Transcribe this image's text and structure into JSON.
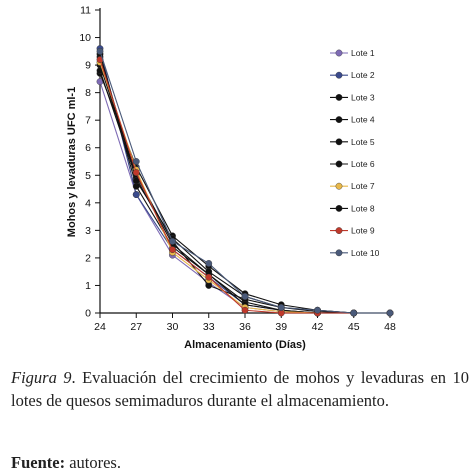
{
  "chart_data": {
    "type": "line",
    "title": "",
    "xlabel": "Almacenamiento (Días)",
    "ylabel": "Mohos y levaduras UFC ml-1",
    "x": [
      24,
      27,
      30,
      33,
      36,
      39,
      42,
      45,
      48
    ],
    "xlim": [
      24,
      48
    ],
    "ylim": [
      0,
      11
    ],
    "yticks": [
      0,
      1,
      2,
      3,
      4,
      5,
      6,
      7,
      8,
      9,
      10,
      11
    ],
    "grid": false,
    "legend_position": "right",
    "series": [
      {
        "name": "Lote 1",
        "color": "#7e6bb5",
        "values": [
          8.4,
          4.3,
          2.1,
          1.1,
          0.2,
          0.05,
          0.0,
          0.0,
          0.0
        ]
      },
      {
        "name": "Lote 2",
        "color": "#3a4a8c",
        "values": [
          9.6,
          4.3,
          2.3,
          1.3,
          0.3,
          0.1,
          0.0,
          0.0,
          0.0
        ]
      },
      {
        "name": "Lote 3",
        "color": "#111111",
        "values": [
          8.7,
          5.3,
          2.8,
          1.7,
          0.7,
          0.3,
          0.1,
          0.0,
          0.0
        ]
      },
      {
        "name": "Lote 4",
        "color": "#111111",
        "values": [
          9.3,
          4.6,
          2.4,
          1.4,
          0.4,
          0.1,
          0.0,
          0.0,
          0.0
        ]
      },
      {
        "name": "Lote 5",
        "color": "#111111",
        "values": [
          9.0,
          5.0,
          2.6,
          1.0,
          0.5,
          0.2,
          0.05,
          0.0,
          0.0
        ]
      },
      {
        "name": "Lote 6",
        "color": "#111111",
        "values": [
          8.8,
          4.9,
          2.5,
          1.4,
          0.3,
          0.1,
          0.0,
          0.0,
          0.0
        ]
      },
      {
        "name": "Lote 7",
        "color": "#e8b84a",
        "values": [
          9.1,
          5.2,
          2.2,
          1.2,
          0.2,
          0.05,
          0.0,
          0.0,
          0.0
        ]
      },
      {
        "name": "Lote 8",
        "color": "#111111",
        "values": [
          9.4,
          4.8,
          2.7,
          1.5,
          0.6,
          0.2,
          0.1,
          0.0,
          0.0
        ]
      },
      {
        "name": "Lote 9",
        "color": "#c0392b",
        "values": [
          9.2,
          5.1,
          2.3,
          1.3,
          0.1,
          0.0,
          0.0,
          0.0,
          0.0
        ]
      },
      {
        "name": "Lote 10",
        "color": "#4a5a7a",
        "values": [
          9.5,
          5.5,
          2.6,
          1.8,
          0.6,
          0.2,
          0.1,
          0.0,
          0.0
        ]
      }
    ]
  },
  "caption": {
    "figure_label": "Figura 9",
    "text": ". Evaluación del crecimiento de mohos y levaduras en 10 lotes de quesos semimaduros durante el almacenamiento.",
    "source_label": "Fuente:",
    "source_text": " autores."
  }
}
